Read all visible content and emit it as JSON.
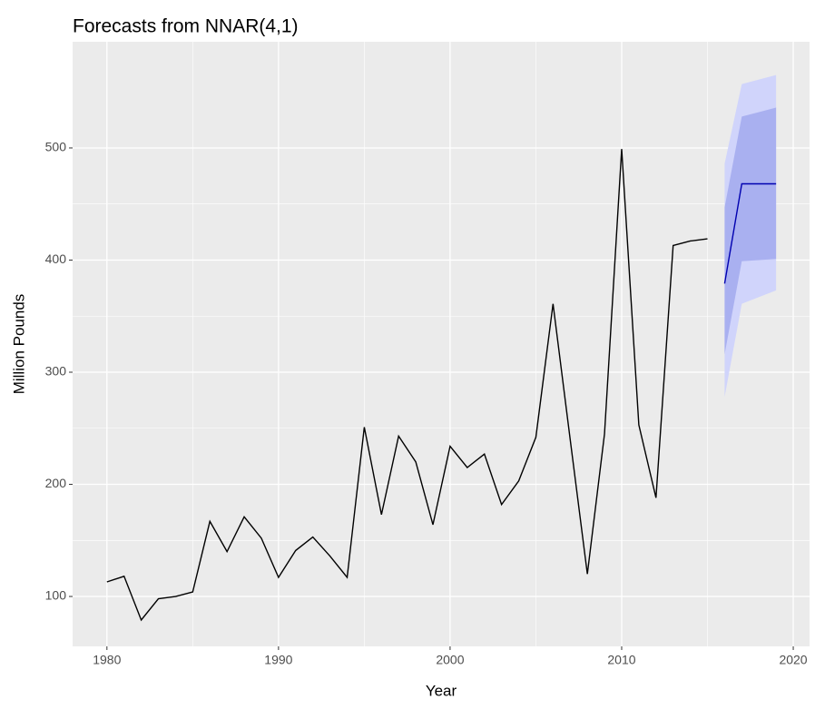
{
  "chart_data": {
    "type": "line",
    "title": "Forecasts from NNAR(4,1)",
    "x_label": "Year",
    "y_label": "Million Pounds",
    "xlim": [
      1978.0,
      2020.95
    ],
    "ylim": [
      55.5,
      594.7
    ],
    "xticks": [
      1980,
      1990,
      2000,
      2010,
      2020
    ],
    "yticks": [
      100,
      200,
      300,
      400,
      500
    ],
    "grid": true,
    "bands": [
      {
        "x": [
          2016,
          2017,
          2018,
          2019
        ],
        "lower": [
          278,
          361,
          367,
          373
        ],
        "upper": [
          486,
          557,
          561,
          565
        ],
        "color": "#d0d4fb"
      },
      {
        "x": [
          2016,
          2017,
          2018,
          2019
        ],
        "lower": [
          316,
          399,
          400,
          401
        ],
        "upper": [
          447,
          528,
          532,
          536
        ],
        "color": "#a9b0f0"
      }
    ],
    "series": [
      {
        "color": "#000000",
        "x": [
          1980,
          1981,
          1982,
          1983,
          1984,
          1985,
          1986,
          1987,
          1988,
          1989,
          1990,
          1991,
          1992,
          1993,
          1994,
          1995,
          1996,
          1997,
          1998,
          1999,
          2000,
          2001,
          2002,
          2003,
          2004,
          2005,
          2006,
          2007,
          2008,
          2009,
          2010,
          2011,
          2012,
          2013,
          2014,
          2015
        ],
        "values": [
          113,
          118,
          79,
          98,
          100,
          104,
          167,
          140,
          171,
          152,
          117,
          141,
          153,
          136,
          117,
          251,
          173,
          243,
          220,
          164,
          234,
          215,
          227,
          182,
          203,
          242,
          361,
          240,
          120,
          245,
          499,
          253,
          188,
          413,
          417,
          419
        ]
      },
      {
        "color": "#0000b0",
        "x": [
          2016,
          2017,
          2018,
          2019
        ],
        "values": [
          379,
          468,
          468,
          468
        ]
      }
    ]
  }
}
